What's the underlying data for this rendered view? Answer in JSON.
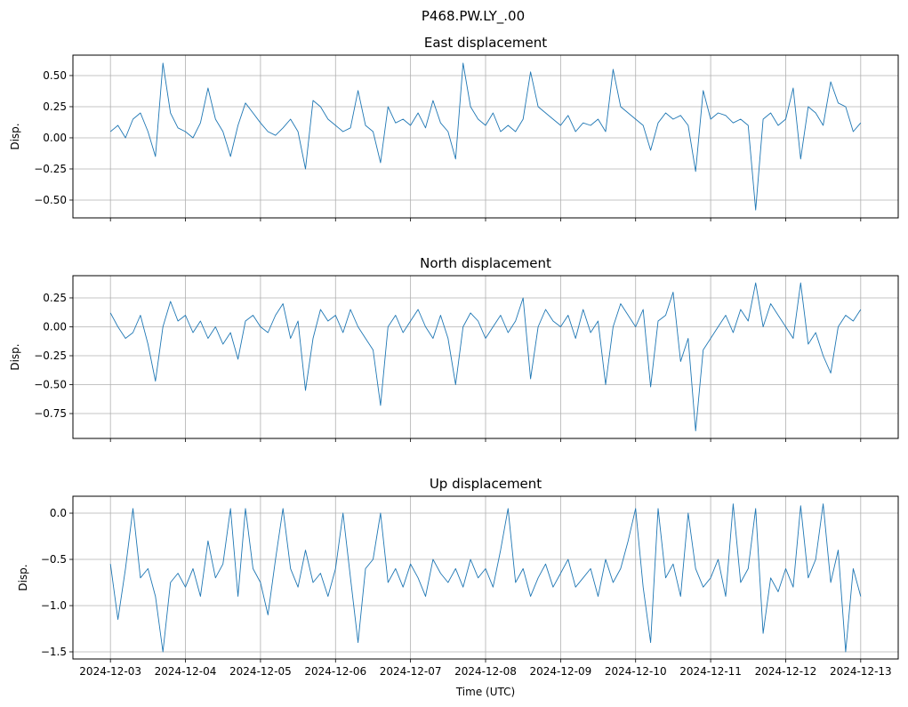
{
  "chart_data": {
    "type": "line",
    "suptitle": "P468.PW.LY_.00",
    "xlabel": "Time (UTC)",
    "x_tick_labels": [
      "2024-12-03",
      "2024-12-04",
      "2024-12-05",
      "2024-12-06",
      "2024-12-07",
      "2024-12-08",
      "2024-12-09",
      "2024-12-10",
      "2024-12-11",
      "2024-12-12",
      "2024-12-13"
    ],
    "x_unit": "days since 2024-12-03 00:00 UTC",
    "x_step_days": 0.1,
    "xlim": [
      -0.5,
      10.5
    ],
    "color": "#1f77b4",
    "panels": [
      {
        "title": "East displacement",
        "ylabel": "Disp.",
        "ylim": [
          -0.643,
          0.664
        ],
        "yticks": [
          -0.5,
          -0.25,
          0,
          0.25,
          0.5
        ],
        "ytick_labels": [
          "−0.50",
          "−0.25",
          "0.00",
          "0.25",
          "0.50"
        ],
        "values": [
          0.05,
          0.1,
          0.0,
          0.15,
          0.2,
          0.05,
          -0.15,
          0.6,
          0.2,
          0.08,
          0.05,
          0.0,
          0.12,
          0.4,
          0.15,
          0.05,
          -0.15,
          0.1,
          0.28,
          0.2,
          0.12,
          0.05,
          0.02,
          0.08,
          0.15,
          0.05,
          -0.25,
          0.3,
          0.25,
          0.15,
          0.1,
          0.05,
          0.08,
          0.38,
          0.1,
          0.05,
          -0.2,
          0.25,
          0.12,
          0.15,
          0.1,
          0.2,
          0.08,
          0.3,
          0.12,
          0.05,
          -0.17,
          0.6,
          0.25,
          0.15,
          0.1,
          0.2,
          0.05,
          0.1,
          0.05,
          0.15,
          0.53,
          0.25,
          0.2,
          0.15,
          0.1,
          0.18,
          0.05,
          0.12,
          0.1,
          0.15,
          0.05,
          0.55,
          0.25,
          0.2,
          0.15,
          0.1,
          -0.1,
          0.12,
          0.2,
          0.15,
          0.18,
          0.1,
          -0.27,
          0.38,
          0.15,
          0.2,
          0.18,
          0.12,
          0.15,
          0.1,
          -0.58,
          0.15,
          0.2,
          0.1,
          0.15,
          0.4,
          -0.17,
          0.25,
          0.2,
          0.1,
          0.45,
          0.28,
          0.25,
          0.05,
          0.12
        ]
      },
      {
        "title": "North displacement",
        "ylabel": "Disp.",
        "ylim": [
          -0.965,
          0.442
        ],
        "yticks": [
          -0.75,
          -0.5,
          -0.25,
          0,
          0.25
        ],
        "ytick_labels": [
          "−0.75",
          "−0.50",
          "−0.25",
          "0.00",
          "0.25"
        ],
        "values": [
          0.12,
          0.0,
          -0.1,
          -0.05,
          0.1,
          -0.15,
          -0.47,
          0.0,
          0.22,
          0.05,
          0.1,
          -0.05,
          0.05,
          -0.1,
          0.0,
          -0.15,
          -0.05,
          -0.28,
          0.05,
          0.1,
          0.0,
          -0.05,
          0.1,
          0.2,
          -0.1,
          0.05,
          -0.55,
          -0.1,
          0.15,
          0.05,
          0.1,
          -0.05,
          0.15,
          0.0,
          -0.1,
          -0.2,
          -0.68,
          0.0,
          0.1,
          -0.05,
          0.05,
          0.15,
          0.0,
          -0.1,
          0.1,
          -0.1,
          -0.5,
          0.0,
          0.12,
          0.05,
          -0.1,
          0.0,
          0.1,
          -0.05,
          0.05,
          0.25,
          -0.45,
          0.0,
          0.15,
          0.05,
          0.0,
          0.1,
          -0.1,
          0.15,
          -0.05,
          0.05,
          -0.5,
          0.0,
          0.2,
          0.1,
          0.0,
          0.15,
          -0.52,
          0.05,
          0.1,
          0.3,
          -0.3,
          -0.1,
          -0.9,
          -0.2,
          -0.1,
          0.0,
          0.1,
          -0.05,
          0.15,
          0.05,
          0.38,
          0.0,
          0.2,
          0.1,
          0.0,
          -0.1,
          0.38,
          -0.15,
          -0.05,
          -0.25,
          -0.4,
          0.0,
          0.1,
          0.05,
          0.15
        ]
      },
      {
        "title": "Up displacement",
        "ylabel": "Disp.",
        "ylim": [
          -1.577,
          0.183
        ],
        "yticks": [
          -1.5,
          -1.0,
          -0.5,
          0.0
        ],
        "ytick_labels": [
          "−1.5",
          "−1.0",
          "−0.5",
          "0.0"
        ],
        "values": [
          -0.55,
          -1.15,
          -0.6,
          0.05,
          -0.7,
          -0.6,
          -0.9,
          -1.5,
          -0.75,
          -0.65,
          -0.8,
          -0.6,
          -0.9,
          -0.3,
          -0.7,
          -0.55,
          0.05,
          -0.9,
          0.05,
          -0.6,
          -0.75,
          -1.1,
          -0.5,
          0.05,
          -0.6,
          -0.8,
          -0.4,
          -0.75,
          -0.65,
          -0.9,
          -0.6,
          0.0,
          -0.7,
          -1.4,
          -0.6,
          -0.5,
          0.0,
          -0.75,
          -0.6,
          -0.8,
          -0.55,
          -0.7,
          -0.9,
          -0.5,
          -0.65,
          -0.75,
          -0.6,
          -0.8,
          -0.5,
          -0.7,
          -0.6,
          -0.8,
          -0.4,
          0.05,
          -0.75,
          -0.6,
          -0.9,
          -0.7,
          -0.55,
          -0.8,
          -0.65,
          -0.5,
          -0.8,
          -0.7,
          -0.6,
          -0.9,
          -0.5,
          -0.75,
          -0.6,
          -0.3,
          0.05,
          -0.8,
          -1.4,
          0.05,
          -0.7,
          -0.55,
          -0.9,
          0.0,
          -0.6,
          -0.8,
          -0.7,
          -0.5,
          -0.9,
          0.1,
          -0.75,
          -0.6,
          0.05,
          -1.3,
          -0.7,
          -0.85,
          -0.6,
          -0.8,
          0.08,
          -0.7,
          -0.5,
          0.1,
          -0.75,
          -0.4,
          -1.5,
          -0.6,
          -0.9
        ]
      }
    ]
  }
}
